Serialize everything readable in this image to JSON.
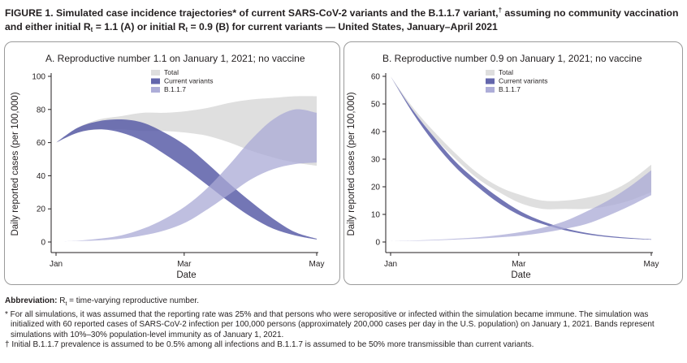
{
  "figure": {
    "title_prefix": "FIGURE 1. Simulated case incidence trajectories",
    "title_mark1": "*",
    "title_mid1": " of current SARS-CoV-2 variants and the B.1.1.7 variant,",
    "title_mark2": "†",
    "title_mid2": " assuming no community vaccination and either initial R",
    "title_sub1": "t",
    "title_mid3": " = 1.1 (A) or initial R",
    "title_sub2": "t",
    "title_end": " = 0.9 (B) for current variants — United States, January–April 2021"
  },
  "notes": {
    "abbrev_label": "Abbreviation:",
    "abbrev_r": " R",
    "abbrev_sub": "t",
    "abbrev_text": " = time-varying reproductive number.",
    "star": "* For all simulations, it was assumed that the reporting rate was 25% and that persons who were seropositive or infected within the simulation became immune. The simulation was initialized with 60 reported cases of SARS-CoV-2 infection per 100,000 persons (approximately 200,000 cases per day in the U.S. population) on January 1, 2021. Bands represent simulations with 10%–30% population-level immunity as of January 1, 2021.",
    "dagger": "† Initial B.1.1.7 prevalence is assumed to be 0.5% among all infections and B.1.1.7 is assumed to be 50% more transmissible than current variants."
  },
  "colors": {
    "total": "#dcdcdc",
    "current": "#5b5ea8",
    "b117": "#a9a9d6",
    "axis": "#231f20"
  },
  "chart_data": [
    {
      "id": "A",
      "type": "area",
      "title": "A. Reproductive number 1.1 on January 1, 2021; no vaccine",
      "xlabel": "Date",
      "ylabel": "Daily reported cases (per 100,000)",
      "x_ticks": [
        "Jan",
        "Mar",
        "May"
      ],
      "x_tick_values": [
        0,
        59,
        120
      ],
      "xlim": [
        0,
        120
      ],
      "y_ticks": [
        0,
        20,
        40,
        60,
        80,
        100
      ],
      "ylim": [
        0,
        100
      ],
      "legend": [
        "Total",
        "Current variants",
        "B.1.1.7"
      ],
      "legend_position": "top-center",
      "x": [
        0,
        10,
        20,
        30,
        40,
        50,
        60,
        70,
        80,
        90,
        100,
        110,
        120
      ],
      "series": [
        {
          "name": "Total",
          "low": [
            60,
            66,
            68,
            68,
            67,
            67,
            66,
            64,
            60,
            55,
            51,
            48,
            46
          ],
          "high": [
            60,
            69,
            74,
            76,
            78,
            78,
            79,
            81,
            84,
            86,
            87,
            88,
            88
          ]
        },
        {
          "name": "Current variants",
          "low": [
            60,
            66,
            68,
            66,
            61,
            53,
            44,
            34,
            24,
            15,
            8,
            4,
            1.5
          ],
          "high": [
            60,
            69,
            73,
            74,
            72,
            66,
            58,
            47,
            35,
            24,
            14,
            6,
            2
          ]
        },
        {
          "name": "B.1.1.7",
          "low": [
            0.3,
            0.6,
            1,
            2,
            4,
            7,
            12,
            20,
            29,
            38,
            44,
            47,
            48
          ],
          "high": [
            0.3,
            0.8,
            2,
            4,
            8,
            14,
            22,
            33,
            47,
            62,
            74,
            80,
            78
          ]
        }
      ]
    },
    {
      "id": "B",
      "type": "area",
      "title": "B. Reproductive number 0.9 on January 1, 2021; no vaccine",
      "xlabel": "Date",
      "ylabel": "Daily reported cases (per 100,000)",
      "x_ticks": [
        "Jan",
        "Mar",
        "May"
      ],
      "x_tick_values": [
        0,
        59,
        120
      ],
      "xlim": [
        0,
        120
      ],
      "y_ticks": [
        0,
        10,
        20,
        30,
        40,
        50,
        60
      ],
      "ylim": [
        0,
        60
      ],
      "legend": [
        "Total",
        "Current variants",
        "B.1.1.7"
      ],
      "legend_position": "top-center",
      "x": [
        0,
        10,
        20,
        30,
        40,
        50,
        60,
        70,
        80,
        90,
        100,
        110,
        120
      ],
      "series": [
        {
          "name": "Total",
          "low": [
            60,
            48,
            38,
            30,
            23,
            18,
            14,
            12,
            12,
            12,
            13,
            15,
            18
          ],
          "high": [
            60,
            49,
            40,
            32,
            25,
            20,
            17,
            15,
            15,
            16,
            18,
            22,
            28
          ]
        },
        {
          "name": "Current variants",
          "low": [
            60,
            47,
            36,
            27,
            20,
            14,
            9.5,
            6.5,
            4.3,
            2.8,
            1.8,
            1.2,
            0.8
          ],
          "high": [
            60,
            48,
            38,
            29,
            22,
            16,
            11,
            7.5,
            5,
            3.3,
            2.2,
            1.5,
            1
          ]
        },
        {
          "name": "B.1.1.7",
          "low": [
            0.3,
            0.4,
            0.6,
            0.9,
            1.2,
            1.7,
            2.3,
            3.3,
            4.7,
            6.5,
            9.5,
            13,
            17
          ],
          "high": [
            0.3,
            0.5,
            0.8,
            1.2,
            1.7,
            2.5,
            3.6,
            5.2,
            7.5,
            11,
            15,
            20,
            26
          ]
        }
      ]
    }
  ]
}
